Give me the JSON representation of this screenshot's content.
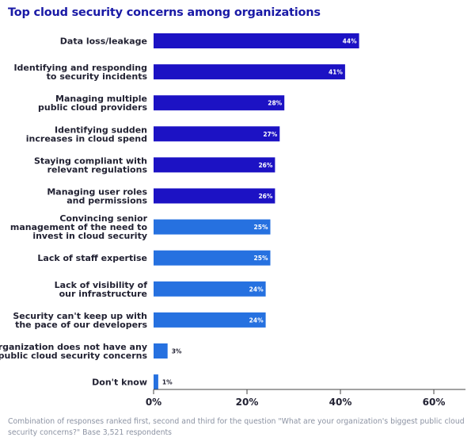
{
  "title": "Top cloud security concerns among organizations",
  "footnote": "Combination of responses ranked first, second and third for the question \"What are your organization's biggest public cloud security concerns?\" Base 3,521 respondents",
  "colors": {
    "bar_dark": "#1c12c4",
    "bar_light": "#2671e0",
    "axis": "#444444",
    "text": "#222233"
  },
  "chart_data": {
    "type": "bar",
    "orientation": "horizontal",
    "categories": [
      "Data loss/leakage",
      "Identifying and responding to security incidents",
      "Managing multiple public cloud providers",
      "Identifying sudden increases in cloud spend",
      "Staying compliant with relevant regulations",
      "Managing user roles and permissions",
      "Convincing senior management of the need to invest in cloud security",
      "Lack of staff expertise",
      "Lack of visibility of our infrastructure",
      "Security can't keep up with the pace of our developers",
      "My organization does not have any public cloud security concerns",
      "Don't know"
    ],
    "category_lines": [
      [
        "Data loss/leakage"
      ],
      [
        "Identifying and responding",
        "to security incidents"
      ],
      [
        "Managing multiple",
        "public cloud providers"
      ],
      [
        "Identifying sudden",
        "increases in cloud spend"
      ],
      [
        "Staying compliant with",
        "relevant regulations"
      ],
      [
        "Managing user roles",
        "and permissions"
      ],
      [
        "Convincing senior",
        "management of the need to",
        "invest in cloud security"
      ],
      [
        "Lack of staff expertise"
      ],
      [
        "Lack of visibility of",
        "our infrastructure"
      ],
      [
        "Security can't keep up with",
        "the pace of our developers"
      ],
      [
        "My organization does not have any",
        "public cloud security concerns"
      ],
      [
        "Don't know"
      ]
    ],
    "values": [
      44,
      41,
      28,
      27,
      26,
      26,
      25,
      25,
      24,
      24,
      3,
      1
    ],
    "data_labels": [
      "44%",
      "41%",
      "28%",
      "27%",
      "26%",
      "26%",
      "25%",
      "25%",
      "24%",
      "24%",
      "3%",
      "1%"
    ],
    "x_ticks": [
      0,
      20,
      40,
      60
    ],
    "x_tick_labels": [
      "0%",
      "20%",
      "40%",
      "60%"
    ],
    "xlim": [
      0,
      68
    ],
    "grid": false,
    "legend": "none"
  }
}
